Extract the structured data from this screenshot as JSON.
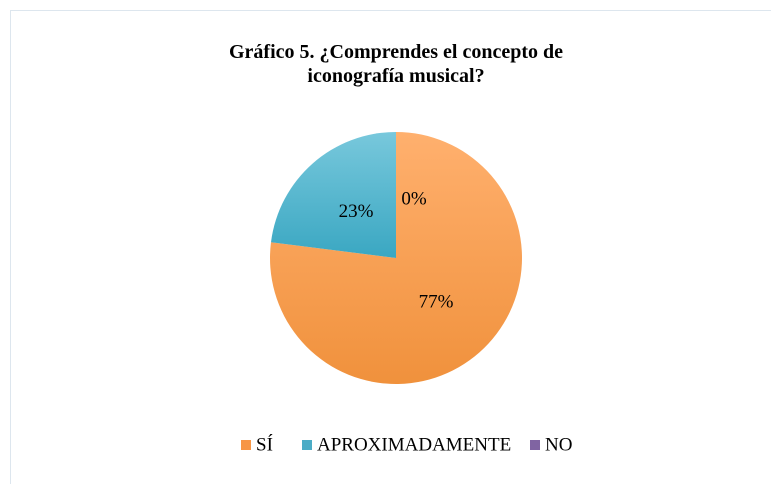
{
  "chart_data": {
    "type": "pie",
    "title": "Gráfico 5. ¿Comprendes el concepto de iconografía musical?",
    "categories": [
      "SÍ",
      "APROXIMADAMENTE",
      "NO"
    ],
    "values": [
      77,
      23,
      0
    ],
    "value_labels": [
      "77%",
      "23%",
      "0%"
    ],
    "colors": [
      "#f79646",
      "#4bacc6",
      "#8064a2"
    ],
    "legend": "bottom"
  }
}
